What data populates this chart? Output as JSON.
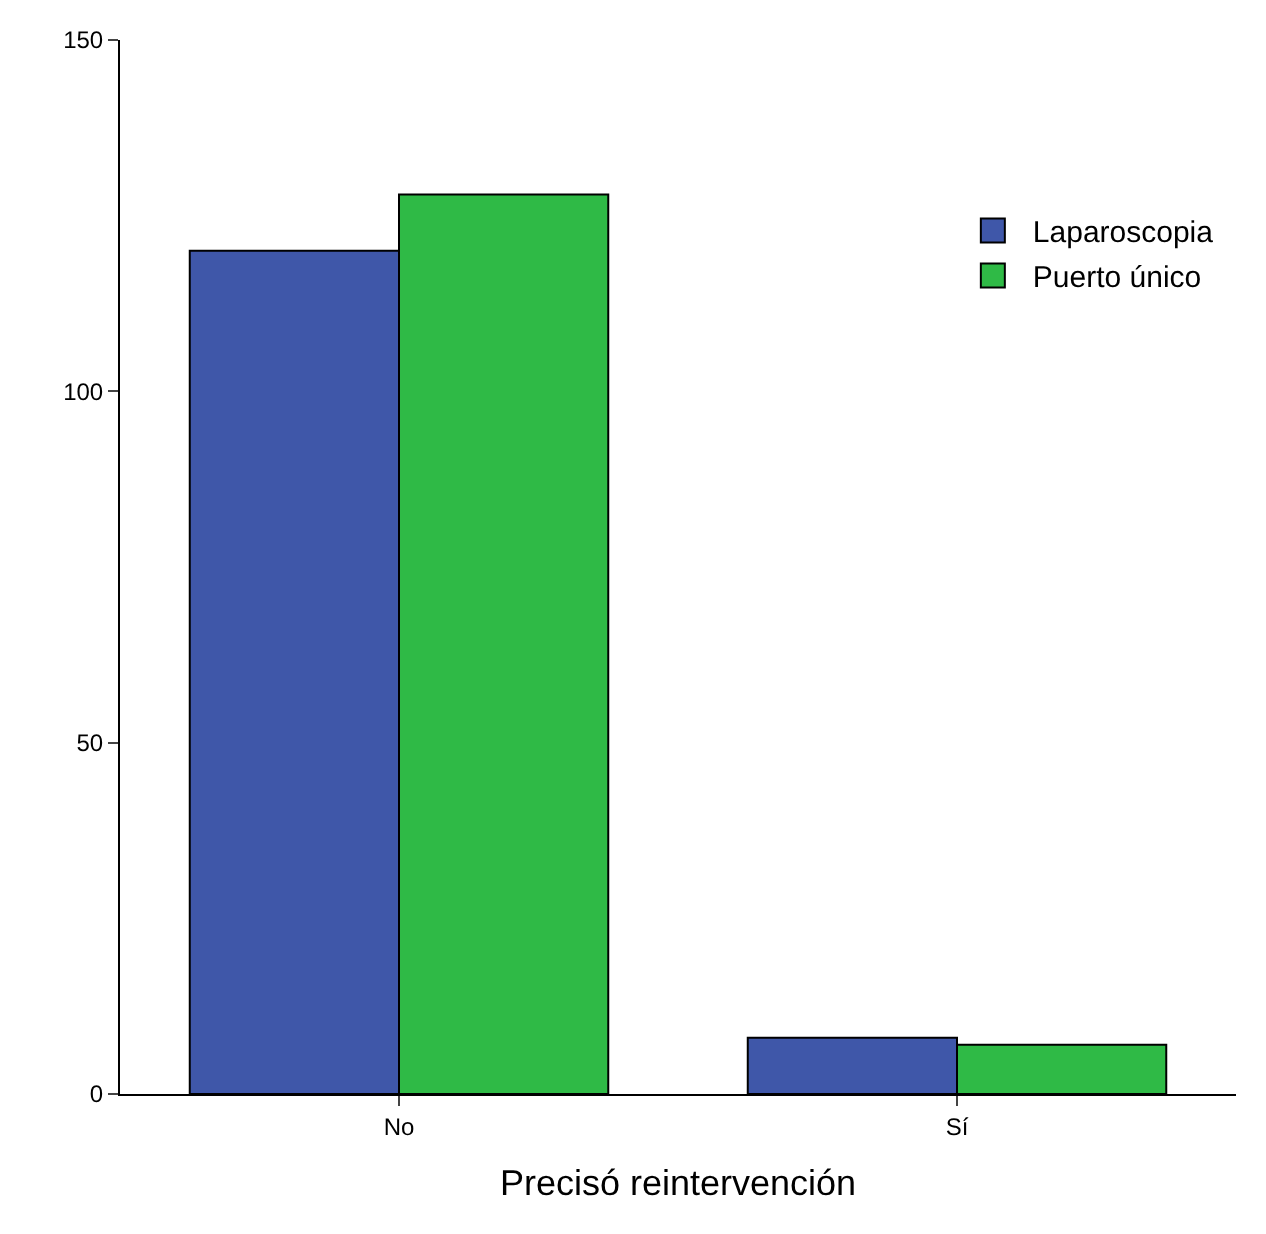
{
  "chart_data": {
    "type": "bar",
    "xlabel": "Precisó reintervención",
    "categories": [
      "No",
      "Sí"
    ],
    "series": [
      {
        "name": "Laparoscopia",
        "color": "#3f57a9",
        "values": [
          120,
          8
        ]
      },
      {
        "name": "Puerto único",
        "color": "#2fba46",
        "values": [
          128,
          7
        ]
      }
    ],
    "ylim": [
      0,
      150
    ],
    "yticks": [
      0,
      50,
      100,
      150
    ],
    "legend": "top right"
  }
}
